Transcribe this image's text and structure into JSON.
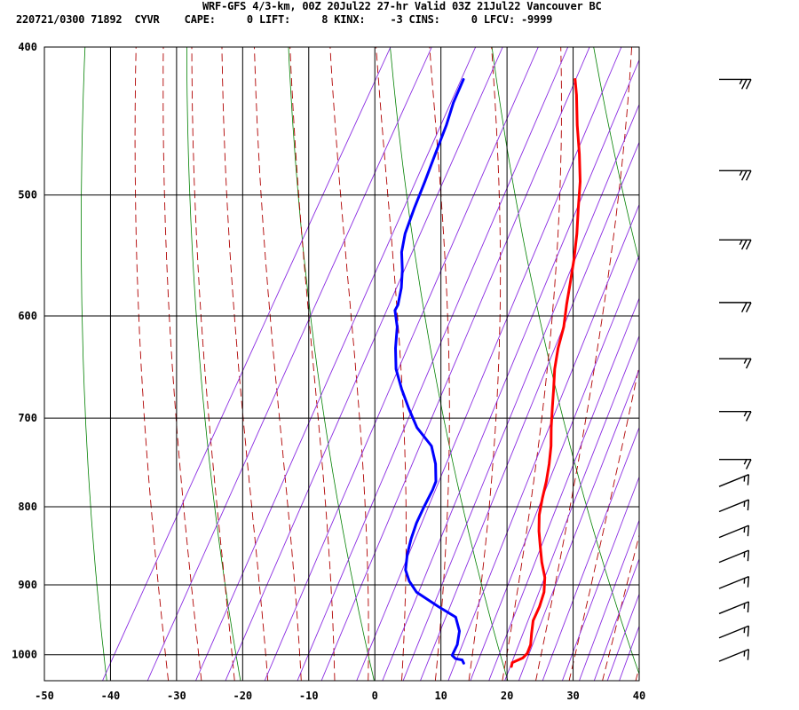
{
  "header": {
    "line1": "WRF-GFS 4/3-km, 00Z 20Jul22 27-hr Valid 03Z 21Jul22 Vancouver BC",
    "line2": "220721/0300 71892  CYVR    CAPE:     0 LIFT:     8 KINX:    -3 CINS:     0 LFCV: -9999"
  },
  "colors": {
    "temperature": "#ff0000",
    "dewpoint": "#0000ff",
    "dry_adiabat": "#008000",
    "moist_adiabat": "#b00000",
    "mixing_ratio": "#8a2be2",
    "grid": "#000000"
  },
  "chart_data": {
    "type": "line",
    "subtype": "skew-T log-p sounding",
    "title": "WRF-GFS 4/3-km, 00Z 20Jul22 27-hr Valid 03Z 21Jul22 Vancouver BC",
    "xlabel": "",
    "ylabel": "",
    "x_ticks": [
      -50,
      -40,
      -30,
      -20,
      -10,
      0,
      10,
      20,
      30,
      40
    ],
    "y_ticks": [
      400,
      500,
      600,
      700,
      800,
      900,
      1000
    ],
    "x_range": [
      -50,
      40
    ],
    "y_range": [
      400,
      1040
    ],
    "y_scale": "log (inverted)",
    "grid": true,
    "series": [
      {
        "key": "temperature",
        "points": [
          [
            1018,
            19.5
          ],
          [
            1012,
            19.3
          ],
          [
            1005,
            20.5
          ],
          [
            998,
            20.8
          ],
          [
            985,
            20.6
          ],
          [
            968,
            19.8
          ],
          [
            950,
            19.0
          ],
          [
            930,
            18.8
          ],
          [
            910,
            18.3
          ],
          [
            890,
            17.2
          ],
          [
            870,
            15.5
          ],
          [
            850,
            14.0
          ],
          [
            830,
            12.5
          ],
          [
            810,
            11.2
          ],
          [
            790,
            10.3
          ],
          [
            770,
            9.5
          ],
          [
            750,
            8.5
          ],
          [
            730,
            7.3
          ],
          [
            710,
            5.8
          ],
          [
            690,
            4.4
          ],
          [
            670,
            3.0
          ],
          [
            650,
            1.5
          ],
          [
            630,
            0.3
          ],
          [
            610,
            -0.6
          ],
          [
            590,
            -2.0
          ],
          [
            570,
            -3.3
          ],
          [
            550,
            -4.7
          ],
          [
            530,
            -6.3
          ],
          [
            510,
            -8.2
          ],
          [
            490,
            -10.1
          ],
          [
            470,
            -12.5
          ],
          [
            450,
            -15.2
          ],
          [
            430,
            -17.8
          ],
          [
            420,
            -19.3
          ]
        ]
      },
      {
        "key": "dewpoint",
        "points": [
          [
            1013,
            12.0
          ],
          [
            1008,
            11.5
          ],
          [
            1006,
            10.4
          ],
          [
            1001,
            9.6
          ],
          [
            985,
            9.5
          ],
          [
            965,
            8.7
          ],
          [
            945,
            7.0
          ],
          [
            930,
            3.5
          ],
          [
            910,
            -1.0
          ],
          [
            895,
            -3.0
          ],
          [
            880,
            -4.5
          ],
          [
            860,
            -5.5
          ],
          [
            840,
            -6.2
          ],
          [
            820,
            -6.7
          ],
          [
            800,
            -6.9
          ],
          [
            780,
            -7.0
          ],
          [
            770,
            -7.2
          ],
          [
            750,
            -8.7
          ],
          [
            730,
            -10.8
          ],
          [
            710,
            -14.5
          ],
          [
            690,
            -17.3
          ],
          [
            670,
            -20.0
          ],
          [
            650,
            -22.5
          ],
          [
            630,
            -24.3
          ],
          [
            610,
            -25.8
          ],
          [
            595,
            -27.5
          ],
          [
            590,
            -27.5
          ],
          [
            575,
            -28.4
          ],
          [
            560,
            -29.7
          ],
          [
            545,
            -31.3
          ],
          [
            530,
            -32.3
          ],
          [
            510,
            -33.0
          ],
          [
            490,
            -33.6
          ],
          [
            470,
            -34.3
          ],
          [
            450,
            -35.0
          ],
          [
            435,
            -35.8
          ],
          [
            420,
            -36.2
          ]
        ]
      }
    ],
    "wind_barbs": [
      {
        "pressure": 420,
        "speed_kt": 25
      },
      {
        "pressure": 482,
        "speed_kt": 25
      },
      {
        "pressure": 535,
        "speed_kt": 25
      },
      {
        "pressure": 588,
        "speed_kt": 20
      },
      {
        "pressure": 640,
        "speed_kt": 15
      },
      {
        "pressure": 693,
        "speed_kt": 15
      },
      {
        "pressure": 745,
        "speed_kt": 15
      },
      {
        "pressure": 776,
        "speed_kt": 15
      },
      {
        "pressure": 806,
        "speed_kt": 15
      },
      {
        "pressure": 838,
        "speed_kt": 15
      },
      {
        "pressure": 870,
        "speed_kt": 15
      },
      {
        "pressure": 905,
        "speed_kt": 15
      },
      {
        "pressure": 940,
        "speed_kt": 15
      },
      {
        "pressure": 975,
        "speed_kt": 15
      },
      {
        "pressure": 1010,
        "speed_kt": 15
      }
    ]
  }
}
